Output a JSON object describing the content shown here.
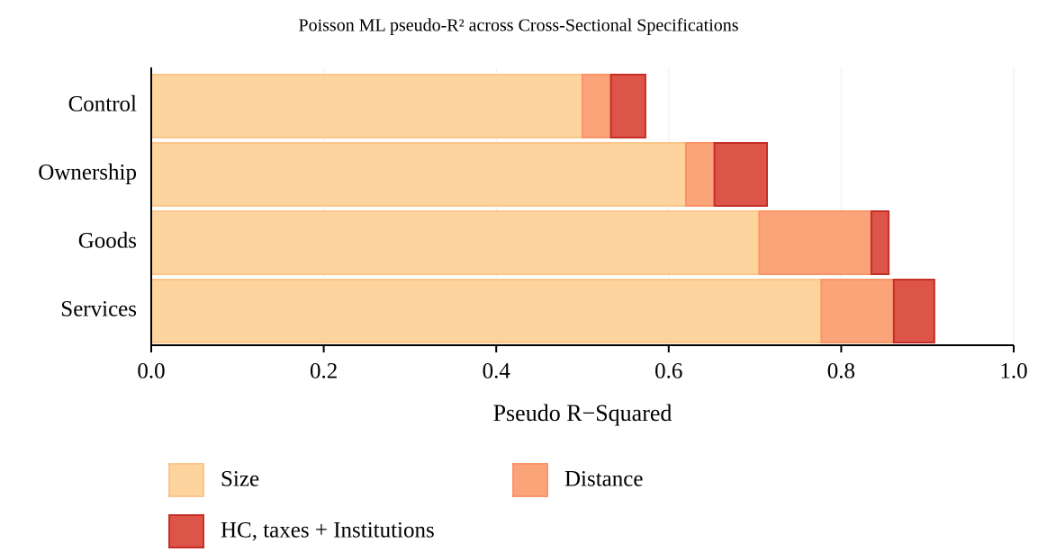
{
  "chart_data": {
    "type": "stacked_bar_horizontal",
    "title": "Poisson ML pseudo-R² across Cross-Sectional Specifications",
    "x_label": "Pseudo R−Squared",
    "categories": [
      "Control",
      "Ownership",
      "Goods",
      "Services"
    ],
    "series": [
      {
        "name": "Size",
        "color": "#fdd49e",
        "edge": "#fcc68a",
        "values": [
          0.5,
          0.62,
          0.705,
          0.777
        ]
      },
      {
        "name": "Distance",
        "color": "#fca479",
        "edge": "#fb9466",
        "values": [
          0.033,
          0.033,
          0.13,
          0.084
        ]
      },
      {
        "name": "HC, taxes + Institutions",
        "color": "#dd5548",
        "edge": "#c62f27",
        "values": [
          0.04,
          0.061,
          0.02,
          0.047
        ]
      }
    ],
    "xlim": [
      0,
      1
    ],
    "xticks": [
      {
        "value": 0,
        "label": "0.0"
      },
      {
        "value": 0.2,
        "label": "0.2"
      },
      {
        "value": 0.4,
        "label": "0.4"
      },
      {
        "value": 0.6,
        "label": "0.6"
      },
      {
        "value": 0.8,
        "label": "0.8"
      },
      {
        "value": 1,
        "label": "1.0"
      }
    ],
    "grid": true,
    "legend": "bottom"
  }
}
